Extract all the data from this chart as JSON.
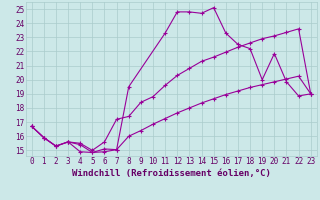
{
  "xlabel": "Windchill (Refroidissement éolien,°C)",
  "bg_color": "#cce8e8",
  "line_color": "#990099",
  "grid_color": "#aacccc",
  "xlim_min": -0.5,
  "xlim_max": 23.5,
  "ylim_min": 14.6,
  "ylim_max": 25.5,
  "xticks": [
    0,
    1,
    2,
    3,
    4,
    5,
    6,
    7,
    8,
    9,
    10,
    11,
    12,
    13,
    14,
    15,
    16,
    17,
    18,
    19,
    20,
    21,
    22,
    23
  ],
  "yticks": [
    15,
    16,
    17,
    18,
    19,
    20,
    21,
    22,
    23,
    24,
    25
  ],
  "line1_x": [
    0,
    1,
    2,
    3,
    4,
    5,
    6,
    7,
    8,
    11,
    12,
    13,
    14,
    15,
    16,
    17,
    18,
    19,
    20,
    21,
    22,
    23
  ],
  "line1_y": [
    16.7,
    15.9,
    15.3,
    15.6,
    14.9,
    14.85,
    14.9,
    15.05,
    19.5,
    23.3,
    24.8,
    24.8,
    24.7,
    25.1,
    23.3,
    22.5,
    22.2,
    20.0,
    21.85,
    19.85,
    18.85,
    19.0
  ],
  "line2_x": [
    0,
    1,
    2,
    3,
    4,
    5,
    6,
    7,
    8,
    9,
    10,
    11,
    12,
    13,
    14,
    15,
    16,
    17,
    18,
    19,
    20,
    21,
    22,
    23
  ],
  "line2_y": [
    16.7,
    15.9,
    15.3,
    15.6,
    15.5,
    15.0,
    15.6,
    17.2,
    17.4,
    18.4,
    18.8,
    19.6,
    20.3,
    20.8,
    21.3,
    21.6,
    21.95,
    22.3,
    22.6,
    22.9,
    23.1,
    23.35,
    23.6,
    19.0
  ],
  "line3_x": [
    0,
    1,
    2,
    3,
    4,
    5,
    6,
    7,
    8,
    9,
    10,
    11,
    12,
    13,
    14,
    15,
    16,
    17,
    18,
    19,
    20,
    21,
    22,
    23
  ],
  "line3_y": [
    16.7,
    15.9,
    15.3,
    15.6,
    15.4,
    14.85,
    15.1,
    15.05,
    16.0,
    16.4,
    16.85,
    17.25,
    17.65,
    18.0,
    18.35,
    18.65,
    18.95,
    19.2,
    19.45,
    19.65,
    19.85,
    20.05,
    20.25,
    19.0
  ],
  "font_color": "#660066",
  "tick_fontsize": 5.5,
  "label_fontsize": 6.5
}
